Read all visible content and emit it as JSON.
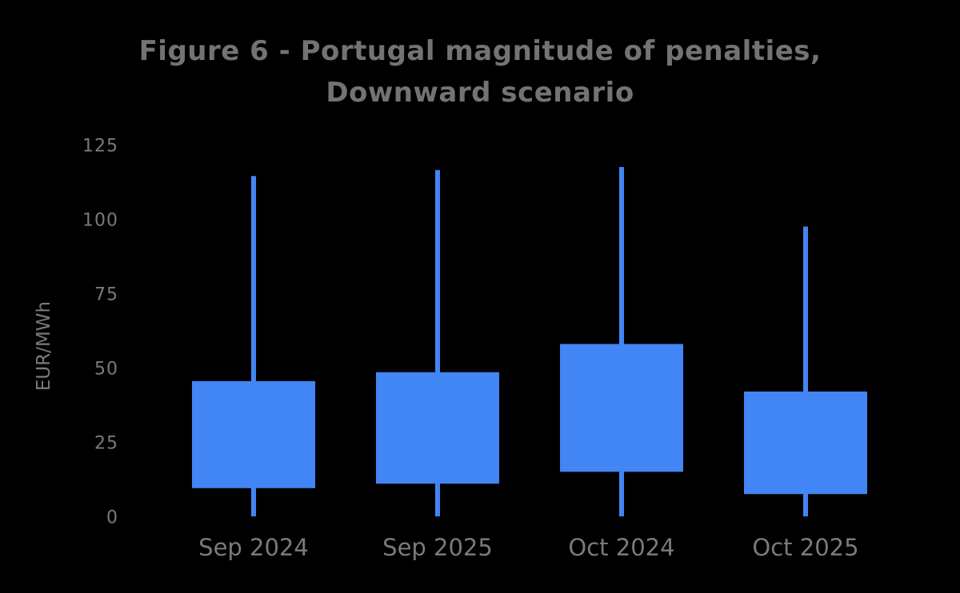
{
  "figure": {
    "title_lines": [
      "Figure 6 - Portugal magnitude of penalties,",
      "Downward scenario"
    ]
  },
  "chart_data": {
    "type": "boxplot",
    "style": "candlestick boxes with high/low whiskers, no median line shown",
    "title": "Figure 6 - Portugal magnitude of penalties, Downward scenario",
    "xlabel": "",
    "ylabel": "EUR/MWh",
    "categories": [
      "Sep 2024",
      "Sep 2025",
      "Oct 2024",
      "Oct 2025"
    ],
    "series": [
      {
        "category": "Sep 2024",
        "whisker_high": 115,
        "box_top": 46,
        "box_bottom": 10,
        "whisker_low": 0.5
      },
      {
        "category": "Sep 2025",
        "whisker_high": 117,
        "box_top": 49,
        "box_bottom": 11.5,
        "whisker_low": 0.5
      },
      {
        "category": "Oct 2024",
        "whisker_high": 118,
        "box_top": 58.5,
        "box_bottom": 15.5,
        "whisker_low": 0.5
      },
      {
        "category": "Oct 2025",
        "whisker_high": 98,
        "box_top": 42.5,
        "box_bottom": 8,
        "whisker_low": 0.5
      }
    ],
    "yticks": [
      0,
      25,
      50,
      75,
      100,
      125
    ],
    "ylim": [
      0,
      131
    ],
    "grid": false,
    "legend": false,
    "axis_lines": false,
    "colors": {
      "box": "#4285F4",
      "background": "#000000",
      "title_text": "#737373",
      "axis_text": "#7a7a7a"
    }
  }
}
